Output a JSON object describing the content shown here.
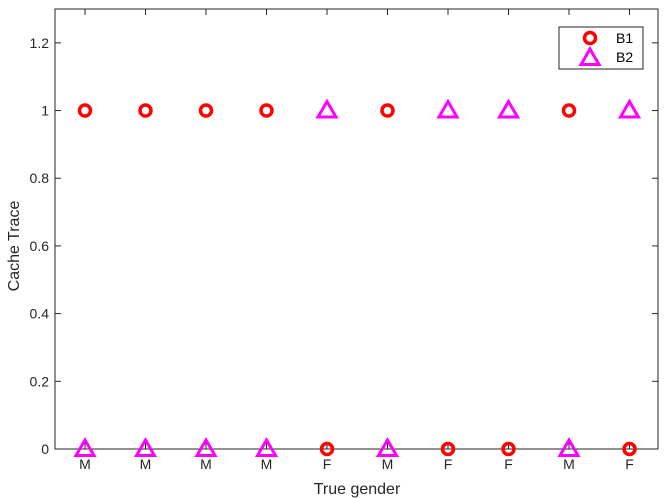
{
  "chart_data": {
    "type": "scatter",
    "title": "",
    "xlabel": "True gender",
    "ylabel": "Cache Trace",
    "categories": [
      "M",
      "M",
      "M",
      "M",
      "F",
      "M",
      "F",
      "F",
      "M",
      "F"
    ],
    "ylim": [
      0,
      1.3
    ],
    "yticks": [
      0,
      0.2,
      0.4,
      0.6,
      0.8,
      1,
      1.2
    ],
    "ytick_labels": [
      "0",
      "0.2",
      "0.4",
      "0.6",
      "0.8",
      "1",
      "1.2"
    ],
    "grid": false,
    "legend_position": "top-right",
    "series": [
      {
        "name": "B1",
        "marker": "circle",
        "color": "#ff0000",
        "values": [
          1,
          1,
          1,
          1,
          0,
          1,
          0,
          0,
          1,
          0
        ]
      },
      {
        "name": "B2",
        "marker": "triangle",
        "color": "#ff00ff",
        "values": [
          0,
          0,
          0,
          0,
          1,
          0,
          1,
          1,
          0,
          1
        ]
      }
    ]
  }
}
